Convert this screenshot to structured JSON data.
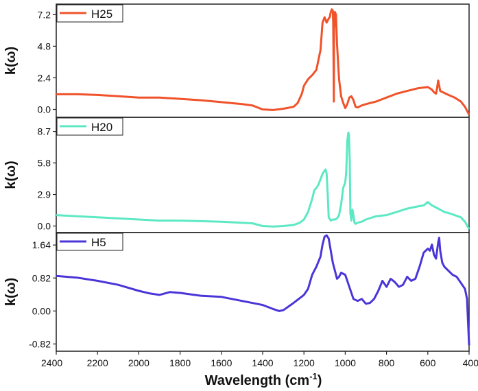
{
  "chart_data": {
    "type": "line",
    "xlabel": "Wavelength (cm",
    "xlabel_sup": "-1",
    "xlabel_close": ")",
    "xlim": [
      2400,
      400
    ],
    "x_ticks": [
      2400,
      2200,
      2000,
      1800,
      1600,
      1400,
      1200,
      1000,
      800,
      600,
      400
    ],
    "panels": [
      {
        "name": "H25",
        "color": "#f0522a",
        "ylabel": "k(ω)",
        "ylim": [
          -0.6,
          8.0
        ],
        "y_ticks": [
          "7.2",
          "4.8",
          "2.4",
          "0.0"
        ],
        "y_tick_values": [
          7.2,
          4.8,
          2.4,
          0.0
        ],
        "x": [
          2400,
          2300,
          2200,
          2100,
          2000,
          1900,
          1800,
          1700,
          1600,
          1500,
          1450,
          1400,
          1350,
          1300,
          1250,
          1230,
          1210,
          1200,
          1180,
          1160,
          1140,
          1120,
          1110,
          1100,
          1095,
          1090,
          1080,
          1075,
          1070,
          1065,
          1060,
          1058,
          1056,
          1055,
          1054,
          1050,
          1045,
          1040,
          1030,
          1020,
          1010,
          1000,
          990,
          980,
          970,
          960,
          950,
          940,
          920,
          900,
          850,
          800,
          750,
          700,
          650,
          600,
          580,
          570,
          560,
          555,
          550,
          545,
          540,
          520,
          500,
          470,
          440,
          420,
          400
        ],
        "y": [
          1.15,
          1.15,
          1.1,
          1.0,
          0.9,
          0.9,
          0.8,
          0.7,
          0.55,
          0.4,
          0.3,
          0.0,
          -0.05,
          0.05,
          0.2,
          0.5,
          1.2,
          1.8,
          2.3,
          2.6,
          3.0,
          4.5,
          6.6,
          7.0,
          6.8,
          6.6,
          6.9,
          7.0,
          7.4,
          7.6,
          7.5,
          6.5,
          3.0,
          0.6,
          6.0,
          7.4,
          7.2,
          5.0,
          2.3,
          1.0,
          0.5,
          0.1,
          0.4,
          0.9,
          1.0,
          0.7,
          0.2,
          0.15,
          0.3,
          0.4,
          0.6,
          0.9,
          1.2,
          1.4,
          1.6,
          1.7,
          1.5,
          1.3,
          1.2,
          1.6,
          2.2,
          1.8,
          1.4,
          1.25,
          1.1,
          0.9,
          0.6,
          0.2,
          -0.4
        ]
      },
      {
        "name": "H20",
        "color": "#5de8c4",
        "ylabel": "k(ω)",
        "ylim": [
          -0.6,
          10.0
        ],
        "y_ticks": [
          "8.7",
          "5.8",
          "2.9",
          "0.0"
        ],
        "y_tick_values": [
          8.7,
          5.8,
          2.9,
          0.0
        ],
        "x": [
          2400,
          2300,
          2200,
          2100,
          2000,
          1900,
          1800,
          1700,
          1600,
          1500,
          1450,
          1400,
          1350,
          1300,
          1250,
          1220,
          1200,
          1180,
          1160,
          1150,
          1140,
          1130,
          1120,
          1110,
          1100,
          1095,
          1090,
          1085,
          1080,
          1070,
          1060,
          1050,
          1040,
          1030,
          1020,
          1010,
          1000,
          995,
          990,
          985,
          982,
          978,
          975,
          970,
          965,
          960,
          955,
          950,
          940,
          920,
          900,
          850,
          800,
          750,
          700,
          650,
          620,
          600,
          580,
          560,
          540,
          520,
          500,
          470,
          440,
          420,
          400
        ],
        "y": [
          1.0,
          0.9,
          0.8,
          0.7,
          0.6,
          0.5,
          0.5,
          0.45,
          0.4,
          0.3,
          0.25,
          0.0,
          -0.05,
          0.0,
          0.1,
          0.3,
          0.6,
          1.3,
          2.5,
          3.3,
          3.5,
          3.8,
          4.3,
          4.8,
          5.1,
          5.2,
          4.8,
          3.0,
          0.8,
          0.5,
          0.6,
          0.6,
          0.7,
          1.0,
          2.0,
          3.5,
          4.0,
          5.0,
          7.8,
          8.6,
          8.4,
          6.0,
          1.2,
          0.5,
          1.5,
          1.0,
          0.3,
          0.2,
          0.3,
          0.4,
          0.6,
          0.9,
          1.0,
          1.3,
          1.6,
          1.8,
          1.9,
          2.2,
          1.9,
          1.7,
          1.5,
          1.3,
          1.2,
          1.0,
          0.8,
          0.4,
          -0.3
        ]
      },
      {
        "name": "H5",
        "color": "#4a35d8",
        "ylabel": "k(ω)",
        "ylim": [
          -1.0,
          1.95
        ],
        "y_ticks": [
          "1.64",
          "0.82",
          "0.00",
          "-0.82"
        ],
        "y_tick_values": [
          1.64,
          0.82,
          0.0,
          -0.82
        ],
        "x": [
          2400,
          2300,
          2200,
          2100,
          2000,
          1950,
          1900,
          1850,
          1800,
          1700,
          1600,
          1500,
          1400,
          1350,
          1320,
          1300,
          1250,
          1200,
          1180,
          1160,
          1140,
          1120,
          1110,
          1100,
          1090,
          1080,
          1070,
          1060,
          1050,
          1040,
          1030,
          1020,
          1000,
          980,
          960,
          940,
          920,
          900,
          880,
          860,
          840,
          820,
          800,
          780,
          760,
          740,
          720,
          700,
          680,
          660,
          640,
          620,
          600,
          590,
          580,
          570,
          560,
          550,
          545,
          540,
          530,
          520,
          500,
          480,
          460,
          440,
          420,
          410,
          400
        ],
        "y": [
          0.87,
          0.83,
          0.75,
          0.65,
          0.5,
          0.44,
          0.4,
          0.47,
          0.45,
          0.38,
          0.35,
          0.25,
          0.15,
          0.05,
          0.0,
          0.02,
          0.2,
          0.4,
          0.55,
          0.9,
          1.1,
          1.35,
          1.65,
          1.85,
          1.88,
          1.8,
          1.5,
          1.2,
          1.0,
          0.8,
          0.85,
          0.95,
          0.9,
          0.6,
          0.3,
          0.25,
          0.3,
          0.18,
          0.2,
          0.3,
          0.5,
          0.75,
          0.6,
          0.8,
          0.72,
          0.6,
          0.65,
          0.85,
          0.75,
          0.8,
          1.1,
          1.45,
          1.55,
          1.5,
          1.65,
          1.4,
          1.3,
          1.7,
          1.82,
          1.5,
          1.2,
          1.1,
          1.0,
          0.9,
          0.85,
          0.7,
          0.55,
          0.3,
          -0.85
        ]
      }
    ]
  }
}
